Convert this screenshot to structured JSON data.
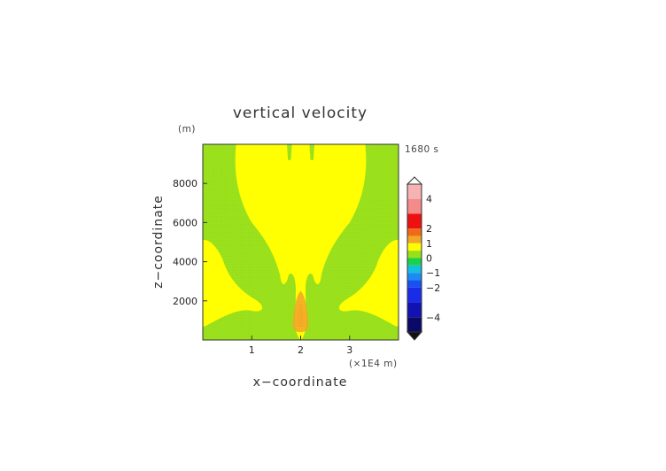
{
  "chart_data": {
    "type": "heatmap",
    "title": "vertical velocity",
    "xlabel": "x−coordinate",
    "ylabel": "z−coordinate",
    "y_unit_label": "(m)",
    "x_unit_label": "(×1E4 m)",
    "time_label": "1680 s",
    "xlim": [
      0,
      4
    ],
    "ylim": [
      0,
      10000
    ],
    "x_ticks": [
      {
        "value": 1,
        "label": "1"
      },
      {
        "value": 2,
        "label": "2"
      },
      {
        "value": 3,
        "label": "3"
      }
    ],
    "y_ticks": [
      {
        "value": 2000,
        "label": "2000"
      },
      {
        "value": 4000,
        "label": "4000"
      },
      {
        "value": 6000,
        "label": "6000"
      },
      {
        "value": 8000,
        "label": "8000"
      }
    ],
    "background_level": "0 to 0.5 (green)",
    "regions": [
      {
        "name": "central updraft column",
        "level": "0.5 to 1",
        "x_range": [
          0.65,
          3.35
        ],
        "z_range": [
          0,
          10000
        ]
      },
      {
        "name": "left low-level lobe",
        "level": "0.5 to 1",
        "x_range": [
          0,
          1.2
        ],
        "z_range": [
          700,
          5200
        ]
      },
      {
        "name": "right low-level lobe",
        "level": "0.5 to 1",
        "x_range": [
          2.75,
          4
        ],
        "z_range": [
          700,
          5200
        ]
      },
      {
        "name": "core updraft",
        "level": "1 to 1.5",
        "x_range": [
          1.8,
          2.2
        ],
        "z_range": [
          300,
          2400
        ],
        "peak": [
          2.0,
          1200
        ]
      }
    ],
    "colorbar": {
      "ticks": [
        {
          "value": 4,
          "label": "4"
        },
        {
          "value": 2,
          "label": "2"
        },
        {
          "value": 1,
          "label": "1"
        },
        {
          "value": 0,
          "label": "0"
        },
        {
          "value": -1,
          "label": "−1"
        },
        {
          "value": -2,
          "label": "−2"
        },
        {
          "value": -4,
          "label": "−4"
        }
      ],
      "bands": [
        {
          "from": 4,
          "to": 5,
          "color": "#f7b3b3"
        },
        {
          "from": 3,
          "to": 4,
          "color": "#f48a8a"
        },
        {
          "from": 2,
          "to": 3,
          "color": "#ee1111"
        },
        {
          "from": 1.5,
          "to": 2,
          "color": "#ee6a17"
        },
        {
          "from": 1,
          "to": 1.5,
          "color": "#f2a526"
        },
        {
          "from": 0.5,
          "to": 1,
          "color": "#ffff00"
        },
        {
          "from": 0,
          "to": 0.5,
          "color": "#99e01a"
        },
        {
          "from": -0.5,
          "to": 0,
          "color": "#1ad14d"
        },
        {
          "from": -1,
          "to": -0.5,
          "color": "#14bfe0"
        },
        {
          "from": -1.5,
          "to": -1,
          "color": "#1a8cf2"
        },
        {
          "from": -2,
          "to": -1.5,
          "color": "#1a50f2"
        },
        {
          "from": -3,
          "to": -2,
          "color": "#1a2ce8"
        },
        {
          "from": -4,
          "to": -3,
          "color": "#1212b3"
        },
        {
          "from": -5,
          "to": -4,
          "color": "#0a0a66"
        }
      ],
      "colors": {
        "yellow": "#ffff00",
        "green": "#99e01a",
        "orange": "#f2a526",
        "white": "#ffffff"
      }
    }
  }
}
